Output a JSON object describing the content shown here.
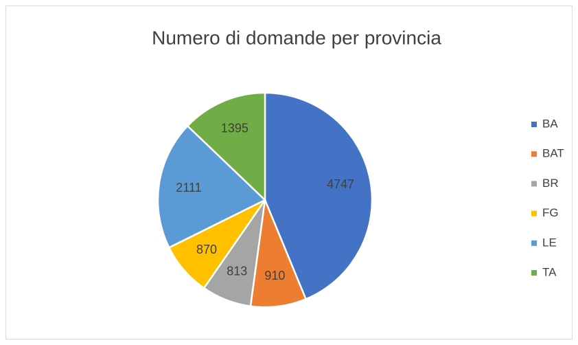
{
  "chart_data": {
    "type": "pie",
    "title": "Numero di domande per provincia",
    "categories": [
      "BA",
      "BAT",
      "BR",
      "FG",
      "LE",
      "TA"
    ],
    "values": [
      4747,
      910,
      813,
      870,
      2111,
      1395
    ],
    "colors": [
      "#4472c4",
      "#ed7d31",
      "#a5a5a5",
      "#ffc000",
      "#5b9bd5",
      "#70ad47"
    ],
    "legend": "right"
  }
}
